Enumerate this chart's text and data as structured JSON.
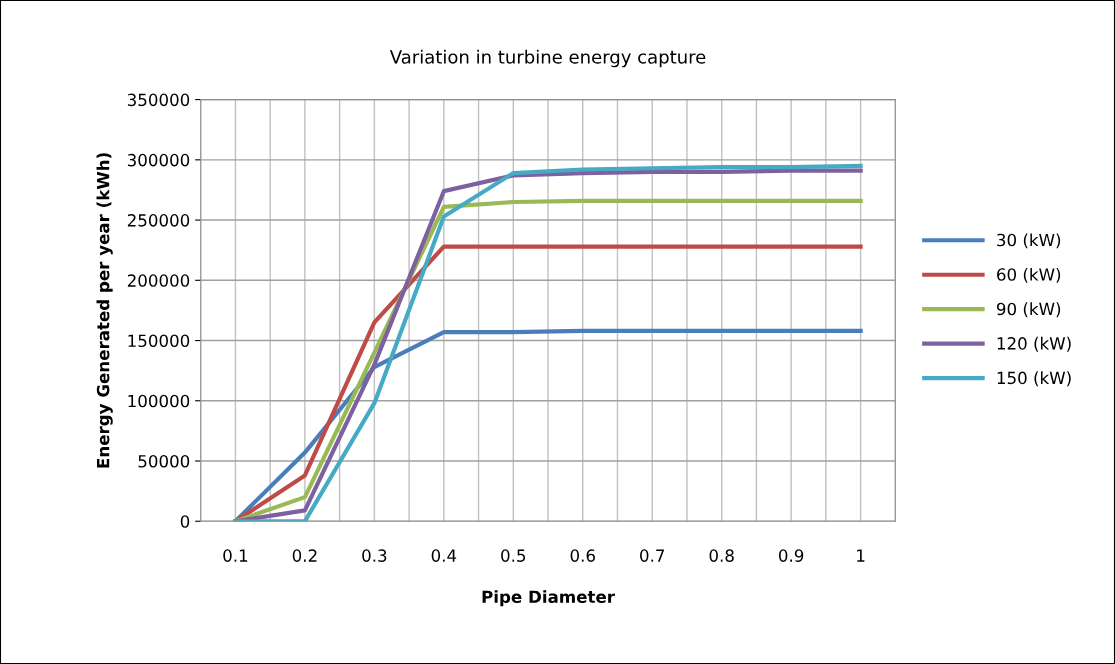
{
  "chart_data": {
    "type": "line",
    "title": "Variation in turbine energy capture",
    "xlabel": "Pipe Diameter",
    "ylabel": "Energy Generated per year (kWh)",
    "categories": [
      "0.1",
      "0.2",
      "0.3",
      "0.4",
      "0.5",
      "0.6",
      "0.7",
      "0.8",
      "0.9",
      "1"
    ],
    "series": [
      {
        "name": "30 (kW)",
        "color": "#4a7ebb",
        "values": [
          0,
          57000,
          128000,
          157000,
          157000,
          158000,
          158000,
          158000,
          158000,
          158000
        ]
      },
      {
        "name": "60 (kW)",
        "color": "#be4b48",
        "values": [
          0,
          38000,
          165000,
          228000,
          228000,
          228000,
          228000,
          228000,
          228000,
          228000
        ]
      },
      {
        "name": "90 (kW)",
        "color": "#98b954",
        "values": [
          0,
          20000,
          140000,
          261000,
          265000,
          266000,
          266000,
          266000,
          266000,
          266000
        ]
      },
      {
        "name": "120 (kW)",
        "color": "#7d60a0",
        "values": [
          0,
          9000,
          130000,
          274000,
          287000,
          289000,
          290000,
          290000,
          291000,
          291000
        ]
      },
      {
        "name": "150 (kW)",
        "color": "#46aac5",
        "values": [
          0,
          0,
          98000,
          253000,
          289000,
          292000,
          293000,
          294000,
          294000,
          295000
        ]
      }
    ],
    "ylim": [
      0,
      350000
    ],
    "yticks": [
      0,
      50000,
      100000,
      150000,
      200000,
      250000,
      300000,
      350000
    ],
    "grid": true,
    "legend": "right",
    "marker": "none",
    "line_style": "solid"
  }
}
